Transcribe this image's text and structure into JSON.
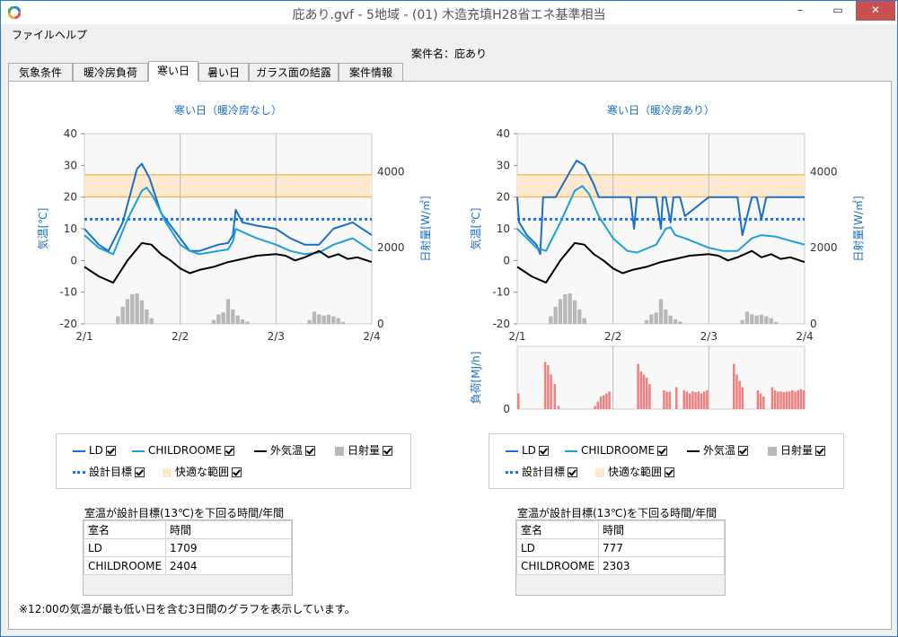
{
  "window": {
    "title": "庇あり.gvf - 5地域 - (01) 木造充填H28省エネ基準相当",
    "minimize": "–",
    "maximize": "▭",
    "close": "✕"
  },
  "menu": {
    "file": "ファイル",
    "help": "ヘルプ"
  },
  "case_label": "案件名：庇あり",
  "tabs": [
    {
      "label": "気象条件"
    },
    {
      "label": "暖冷房負荷"
    },
    {
      "label": "寒い日",
      "active": true
    },
    {
      "label": "暑い日"
    },
    {
      "label": "ガラス面の結露"
    },
    {
      "label": "案件情報"
    }
  ],
  "colors": {
    "ld": "#1a6fc9",
    "child": "#1aa0dc",
    "outdoor": "#000000",
    "solar": "#b8b8b8",
    "target": "#1a73e8",
    "comfort": "#fde9cf",
    "comfort_line": "#f5a623",
    "load": "#f08080"
  },
  "chart_data": [
    {
      "type": "line",
      "title": "寒い日（暖冷房なし）",
      "ylabel": "気温[℃]",
      "y2label": "日射量[W/㎡]",
      "xticks": [
        "2/1",
        "2/2",
        "2/3",
        "2/4"
      ],
      "ylim": [
        -20,
        40
      ],
      "y2lim": [
        0,
        5000
      ],
      "yticks": [
        "40",
        "30",
        "20",
        "10",
        "0",
        "-10",
        "-20"
      ],
      "y2ticks": [
        "4000",
        "2000",
        "0"
      ],
      "comfort_range": [
        20,
        27
      ],
      "target": 13,
      "series": [
        {
          "name": "LD",
          "x": [
            0,
            0.15,
            0.25,
            0.4,
            0.55,
            0.6,
            0.68,
            0.8,
            1.0,
            1.1,
            1.2,
            1.3,
            1.4,
            1.5,
            1.55,
            1.58,
            1.65,
            1.8,
            2.0,
            2.15,
            2.3,
            2.45,
            2.6,
            2.8,
            3.0
          ],
          "y": [
            10,
            5,
            3,
            12,
            29,
            30.5,
            26,
            15,
            7,
            3,
            3,
            4,
            5,
            5.5,
            8,
            16,
            12,
            11,
            10,
            7,
            5,
            5,
            10,
            12,
            8
          ]
        },
        {
          "name": "CHILDROOME",
          "x": [
            0,
            0.15,
            0.3,
            0.45,
            0.6,
            0.65,
            0.72,
            0.85,
            1.0,
            1.1,
            1.2,
            1.3,
            1.4,
            1.5,
            1.55,
            1.58,
            1.65,
            1.8,
            2.0,
            2.15,
            2.3,
            2.45,
            2.6,
            2.8,
            3.0
          ],
          "y": [
            8,
            4,
            2,
            13,
            22,
            23,
            20,
            12,
            5,
            3,
            2,
            2.5,
            3,
            3.5,
            6,
            10,
            9,
            7,
            5,
            3,
            2,
            2.5,
            5,
            7,
            3
          ]
        },
        {
          "name": "外気温",
          "x": [
            0,
            0.15,
            0.3,
            0.45,
            0.6,
            0.7,
            0.8,
            0.9,
            1.0,
            1.1,
            1.2,
            1.35,
            1.5,
            1.65,
            1.8,
            2.0,
            2.1,
            2.2,
            2.3,
            2.45,
            2.55,
            2.65,
            2.75,
            2.85,
            3.0
          ],
          "y": [
            -2,
            -5,
            -7,
            0,
            5.5,
            5,
            2,
            0,
            -2.5,
            -4,
            -3,
            -2,
            -0.5,
            0.5,
            1.5,
            2,
            1.5,
            0,
            1,
            3,
            1,
            2,
            0.5,
            1,
            -0.5
          ]
        }
      ],
      "solar": {
        "name": "日射量",
        "x": [
          0.35,
          0.4,
          0.45,
          0.5,
          0.55,
          0.6,
          0.65,
          0.7,
          1.35,
          1.4,
          1.45,
          1.5,
          1.55,
          1.6,
          1.65,
          1.7,
          2.35,
          2.4,
          2.45,
          2.5,
          2.55,
          2.6,
          2.65,
          2.7
        ],
        "values": [
          200,
          450,
          650,
          780,
          800,
          620,
          380,
          150,
          100,
          250,
          300,
          650,
          380,
          220,
          120,
          60,
          100,
          320,
          250,
          220,
          240,
          200,
          150,
          50
        ]
      },
      "rows": [
        [
          "LD",
          "1709"
        ],
        [
          "CHILDROOME",
          "2404"
        ]
      ],
      "table_title": "室温が設計目標(13℃)を下回る時間/年間",
      "col_room": "室名",
      "col_hours": "時間"
    },
    {
      "type": "line",
      "title": "寒い日（暖冷房あり）",
      "ylabel": "気温[℃]",
      "y2label": "日射量[W/㎡]",
      "load_ylabel": "負荷[MJ/h]",
      "load_ytick": "0",
      "xticks": [
        "2/1",
        "2/2",
        "2/3",
        "2/4"
      ],
      "ylim": [
        -20,
        40
      ],
      "y2lim": [
        0,
        5000
      ],
      "yticks": [
        "40",
        "30",
        "20",
        "10",
        "0",
        "-10",
        "-20"
      ],
      "y2ticks": [
        "4000",
        "2000",
        "0"
      ],
      "comfort_range": [
        20,
        27
      ],
      "target": 13,
      "series": [
        {
          "name": "LD",
          "x": [
            0,
            0.02,
            0.1,
            0.2,
            0.24,
            0.27,
            0.4,
            0.55,
            0.62,
            0.7,
            0.8,
            0.85,
            1.0,
            1.1,
            1.18,
            1.22,
            1.25,
            1.3,
            1.45,
            1.5,
            1.52,
            1.55,
            1.6,
            1.63,
            1.7,
            1.75,
            2.0,
            2.2,
            2.3,
            2.35,
            2.45,
            2.5,
            2.55,
            2.6,
            2.65,
            2.7,
            3.0
          ],
          "y": [
            20,
            12,
            8,
            5,
            2,
            20,
            20,
            28,
            31.5,
            30,
            24,
            20,
            20,
            20,
            20,
            10,
            20,
            20,
            20,
            10,
            20,
            20,
            12,
            20,
            20,
            14,
            20,
            20,
            20,
            8,
            20,
            20,
            13,
            20,
            20,
            20,
            20
          ]
        },
        {
          "name": "CHILDROOME",
          "x": [
            0,
            0.1,
            0.2,
            0.3,
            0.45,
            0.6,
            0.68,
            0.75,
            0.85,
            1.0,
            1.15,
            1.25,
            1.45,
            1.55,
            1.6,
            1.65,
            1.75,
            2.0,
            2.15,
            2.3,
            2.45,
            2.55,
            2.7,
            3.0
          ],
          "y": [
            10,
            7,
            4,
            3,
            12,
            22,
            23.5,
            21,
            14,
            7,
            3,
            2.5,
            5,
            10,
            10.5,
            8,
            7,
            4,
            3,
            3,
            7,
            8,
            7.5,
            5
          ]
        },
        {
          "name": "外気温",
          "x": [
            0,
            0.15,
            0.3,
            0.45,
            0.6,
            0.7,
            0.8,
            0.9,
            1.0,
            1.1,
            1.2,
            1.35,
            1.5,
            1.65,
            1.8,
            2.0,
            2.1,
            2.2,
            2.3,
            2.45,
            2.55,
            2.65,
            2.75,
            2.85,
            3.0
          ],
          "y": [
            -2,
            -5,
            -7,
            0,
            5.5,
            5,
            2,
            0,
            -2.5,
            -4,
            -3,
            -2,
            -0.5,
            0.5,
            1.5,
            2,
            1.5,
            0,
            1,
            3,
            1,
            2,
            0.5,
            1,
            -0.5
          ]
        }
      ],
      "solar": {
        "name": "日射量",
        "x": [
          0.35,
          0.4,
          0.45,
          0.5,
          0.55,
          0.6,
          0.65,
          0.7,
          1.35,
          1.4,
          1.45,
          1.5,
          1.55,
          1.6,
          1.65,
          1.7,
          2.35,
          2.4,
          2.45,
          2.5,
          2.55,
          2.6,
          2.65,
          2.7
        ],
        "values": [
          200,
          450,
          650,
          780,
          800,
          620,
          380,
          150,
          100,
          250,
          300,
          650,
          380,
          220,
          120,
          60,
          100,
          320,
          250,
          220,
          240,
          200,
          150,
          50
        ]
      },
      "load": {
        "x": [
          0.0,
          0.28,
          0.31,
          0.34,
          0.38,
          0.42,
          0.8,
          0.83,
          0.86,
          0.89,
          0.92,
          0.95,
          1.25,
          1.28,
          1.31,
          1.34,
          1.37,
          1.52,
          1.55,
          1.58,
          1.65,
          1.73,
          1.76,
          1.79,
          1.82,
          1.85,
          1.88,
          1.91,
          1.94,
          1.97,
          2.25,
          2.28,
          2.31,
          2.34,
          2.5,
          2.53,
          2.56,
          2.65,
          2.68,
          2.71,
          2.74,
          2.77,
          2.8,
          2.83,
          2.86,
          2.89,
          2.92,
          2.95,
          2.98
        ],
        "values": [
          0.25,
          0.75,
          0.7,
          0.55,
          0.4,
          0.05,
          0.05,
          0.12,
          0.2,
          0.22,
          0.25,
          0.28,
          0.72,
          0.6,
          0.55,
          0.5,
          0.4,
          0.3,
          0.28,
          0.28,
          0.35,
          0.3,
          0.28,
          0.25,
          0.28,
          0.27,
          0.28,
          0.25,
          0.28,
          0.3,
          0.72,
          0.55,
          0.45,
          0.35,
          0.3,
          0.25,
          0.2,
          0.35,
          0.3,
          0.28,
          0.28,
          0.27,
          0.28,
          0.28,
          0.3,
          0.28,
          0.3,
          0.32,
          0.3
        ],
        "ymax": 1.0
      },
      "rows": [
        [
          "LD",
          "777"
        ],
        [
          "CHILDROOME",
          "2303"
        ]
      ],
      "table_title": "室温が設計目標(13℃)を下回る時間/年間",
      "col_room": "室名",
      "col_hours": "時間"
    }
  ],
  "legend": {
    "ld": "LD",
    "child": "CHILDROOME",
    "outdoor": "外気温",
    "solar": "日射量",
    "target": "設計目標",
    "comfort": "快適な範囲"
  },
  "note": "※12:00の気温が最も低い日を含む3日間のグラフを表示しています。"
}
